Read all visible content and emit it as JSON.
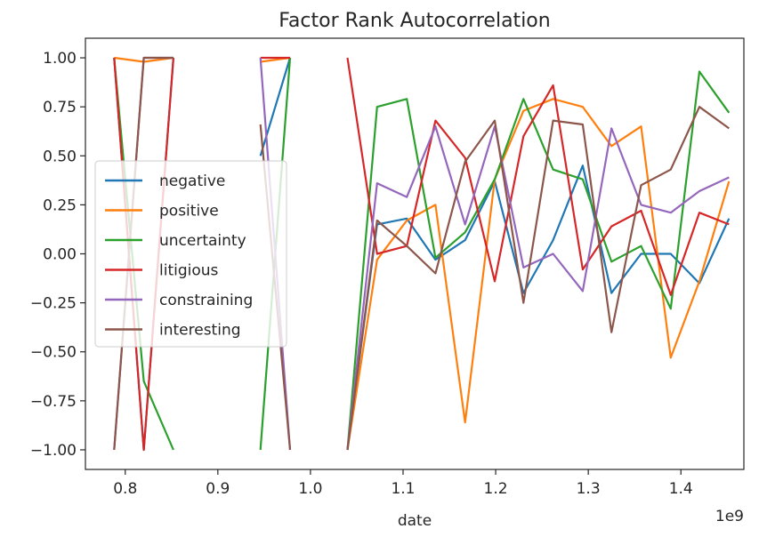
{
  "chart_data": {
    "type": "line",
    "title": "Factor Rank Autocorrelation",
    "xlabel": "date",
    "ylabel": "",
    "x_offset_label": "1e9",
    "xlim": [
      0.757,
      1.468
    ],
    "ylim": [
      -1.1,
      1.1
    ],
    "xticks": [
      0.8,
      0.9,
      1.0,
      1.1,
      1.2,
      1.3,
      1.4
    ],
    "xtick_labels": [
      "0.8",
      "0.9",
      "1.0",
      "1.1",
      "1.2",
      "1.3",
      "1.4"
    ],
    "yticks": [
      1.0,
      0.75,
      0.5,
      0.25,
      0.0,
      -0.25,
      -0.5,
      -0.75,
      -1.0
    ],
    "ytick_labels": [
      "1.00",
      "0.75",
      "0.50",
      "0.25",
      "0.00",
      "−0.25",
      "−0.50",
      "−0.75",
      "−1.00"
    ],
    "grid": false,
    "legend_position": "center-left",
    "x": [
      0.788,
      0.82,
      0.852,
      0.884,
      0.915,
      0.946,
      0.978,
      1.009,
      1.04,
      1.072,
      1.104,
      1.135,
      1.167,
      1.199,
      1.23,
      1.262,
      1.294,
      1.325,
      1.357,
      1.389,
      1.42,
      1.452
    ],
    "series": [
      {
        "name": "negative",
        "color": "#1f77b4",
        "values": [
          1.0,
          -1.0,
          1.0,
          null,
          null,
          0.5,
          1.0,
          null,
          -1.0,
          0.15,
          0.18,
          -0.03,
          0.07,
          0.37,
          -0.2,
          0.07,
          0.45,
          -0.2,
          0.0,
          0.0,
          -0.15,
          0.18
        ]
      },
      {
        "name": "positive",
        "color": "#ff7f0e",
        "values": [
          1.0,
          0.98,
          1.0,
          null,
          null,
          0.98,
          1.0,
          null,
          -1.0,
          -0.03,
          0.17,
          0.25,
          -0.86,
          0.38,
          0.73,
          0.79,
          0.75,
          0.55,
          0.65,
          -0.53,
          -0.14,
          0.37
        ]
      },
      {
        "name": "uncertainty",
        "color": "#2ca02c",
        "values": [
          1.0,
          -0.65,
          -1.0,
          null,
          null,
          -1.0,
          1.0,
          null,
          -1.0,
          0.75,
          0.79,
          -0.02,
          0.11,
          0.38,
          0.79,
          0.43,
          0.38,
          -0.04,
          0.04,
          -0.28,
          0.93,
          0.72
        ]
      },
      {
        "name": "litigious",
        "color": "#d62728",
        "values": [
          1.0,
          -1.0,
          1.0,
          null,
          null,
          1.0,
          1.0,
          null,
          1.0,
          0.0,
          0.04,
          0.68,
          0.49,
          -0.14,
          0.6,
          0.86,
          -0.08,
          0.14,
          0.22,
          -0.21,
          0.21,
          0.15
        ]
      },
      {
        "name": "constraining",
        "color": "#9467bd",
        "values": [
          -1.0,
          1.0,
          1.0,
          null,
          null,
          1.0,
          -1.0,
          null,
          -1.0,
          0.36,
          0.29,
          0.65,
          0.15,
          0.65,
          -0.07,
          0.0,
          -0.19,
          0.64,
          0.25,
          0.21,
          0.32,
          0.39
        ]
      },
      {
        "name": "interesting",
        "color": "#8c564b",
        "values": [
          -1.0,
          1.0,
          1.0,
          null,
          null,
          0.66,
          -1.0,
          null,
          -1.0,
          0.17,
          0.04,
          -0.1,
          0.47,
          0.68,
          -0.25,
          0.68,
          0.66,
          -0.4,
          0.35,
          0.43,
          0.75,
          0.64
        ]
      }
    ]
  }
}
